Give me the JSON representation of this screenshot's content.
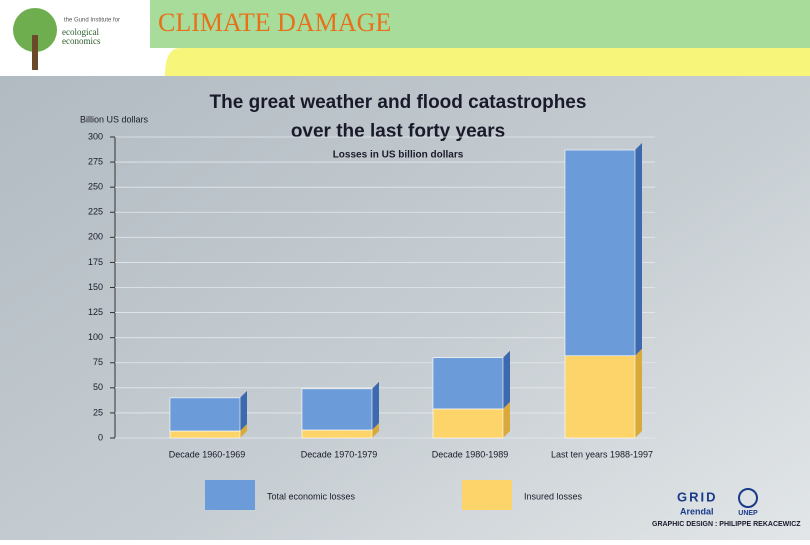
{
  "header": {
    "title": "CLIMATE DAMAGE",
    "logo_small": "the Gund Institute for",
    "logo_big": "ecological economics"
  },
  "chart_data": {
    "type": "stacked_bar",
    "title": "The great weather and flood catastrophes",
    "title_line2": "over the last forty years",
    "subtitle": "Losses in US billion dollars",
    "y_label": "Billion US dollars",
    "categories": [
      "Decade 1960-1969",
      "Decade 1970-1979",
      "Decade 1980-1989",
      "Last ten years 1988-1997"
    ],
    "series": [
      {
        "name": "Insured losses",
        "color": "#fcd46a",
        "values": [
          7,
          8,
          29,
          82
        ]
      },
      {
        "name": "Total economic losses",
        "color": "#6b9bd8",
        "values": [
          33,
          41,
          51,
          205
        ]
      }
    ],
    "ylim": [
      0,
      300
    ],
    "yticks": [
      0,
      25,
      50,
      75,
      100,
      125,
      150,
      175,
      200,
      225,
      250,
      275,
      300
    ],
    "grid": true
  },
  "footer": {
    "grid": "GRID",
    "arendal": "Arendal",
    "unep": "UNEP",
    "credit": "GRAPHIC DESIGN : PHILIPPE REKACEWICZ"
  }
}
